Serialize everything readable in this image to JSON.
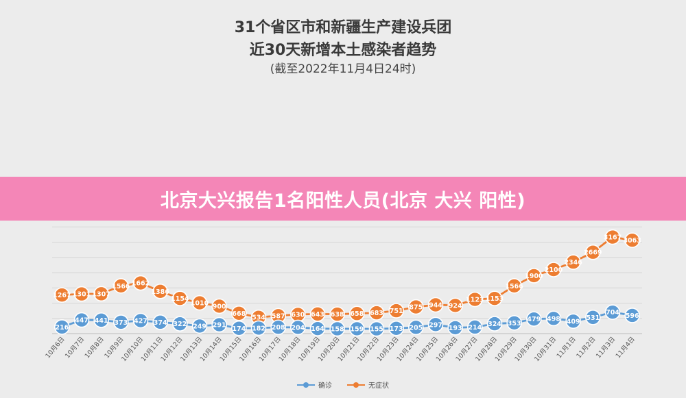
{
  "header": {
    "title_line1": "31个省区市和新疆生产建设兵团",
    "title_line2": "近30天新增本土感染者趋势",
    "subtitle": "(截至2022年11月4日24时)"
  },
  "banner": {
    "text": "北京大兴报告1名阳性人员(北京 大兴 阳性)"
  },
  "chart_data": {
    "type": "line",
    "categories": [
      "10月6日",
      "10月7日",
      "10月8日",
      "10月9日",
      "10月10日",
      "10月11日",
      "10月12日",
      "10月13日",
      "10月14日",
      "10月15日",
      "10月16日",
      "10月17日",
      "10月18日",
      "10月19日",
      "10月20日",
      "10月21日",
      "10月22日",
      "10月23日",
      "10月24日",
      "10月25日",
      "10月26日",
      "10月27日",
      "10月28日",
      "10月29日",
      "10月30日",
      "10月31日",
      "11月1日",
      "11月2日",
      "11月3日",
      "11月4日"
    ],
    "series": [
      {
        "name": "确诊",
        "color": "#5b9bd5",
        "values": [
          216,
          447,
          441,
          373,
          427,
          374,
          322,
          249,
          291,
          174,
          182,
          208,
          204,
          164,
          158,
          159,
          155,
          173,
          205,
          297,
          193,
          214,
          324,
          353,
          479,
          498,
          409,
          531,
          704,
          596
        ]
      },
      {
        "name": "无症状",
        "color": "#ed7d31",
        "values": [
          1267,
          1301,
          1307,
          1566,
          1662,
          1386,
          1154,
          1010,
          900,
          668,
          534,
          587,
          630,
          643,
          638,
          658,
          683,
          751,
          875,
          944,
          924,
          1123,
          1153,
          1566,
          1900,
          2100,
          2346,
          2669,
          3167,
          3063
        ]
      }
    ],
    "ylim": [
      0,
      3500
    ],
    "grid": true,
    "legend_position": "bottom"
  }
}
